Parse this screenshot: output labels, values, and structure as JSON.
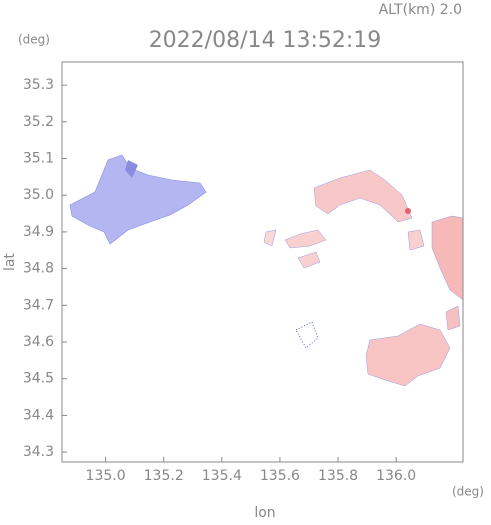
{
  "chart_data": {
    "type": "map",
    "title": "2022/08/14 13:52:19",
    "subtitle": "ALT(km) 2.0",
    "x_label": "lon",
    "x_unit": "(deg)",
    "y_label": "lat",
    "y_unit": "(deg)",
    "xlim": [
      134.85,
      136.23
    ],
    "xticks": [
      {
        "value": 135,
        "label": "135.0"
      },
      135.2,
      135.4,
      135.6,
      135.8,
      {
        "value": 136,
        "label": "136.0"
      }
    ],
    "ylim": [
      34.273,
      35.363
    ],
    "yticks": [
      35.3,
      35.2,
      35.1,
      {
        "value": 35,
        "label": "35.0"
      },
      34.9,
      34.8,
      34.7,
      34.6,
      34.5,
      34.4,
      34.3
    ]
  }
}
